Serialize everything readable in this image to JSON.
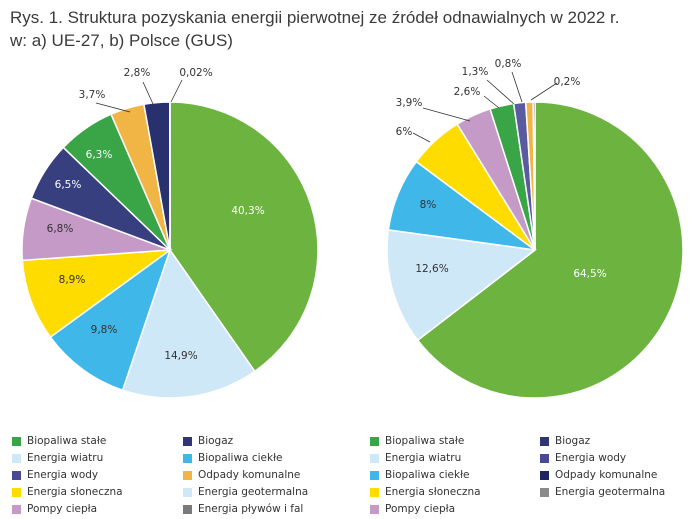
{
  "title": {
    "line1": "Rys. 1. Struktura pozyskania energii pierwotnej ze źródeł odnawialnych w 2022 r.",
    "line2": "w: a) UE-27, b) Polsce (GUS)"
  },
  "chart_data": [
    {
      "type": "pie",
      "id": "ue27",
      "start": "top",
      "direction": "clockwise",
      "slices": [
        {
          "label": "Biopaliwa stałe",
          "value": 40.3,
          "text": "40,3%",
          "color": "#6db33f",
          "text_color": "#ffffff"
        },
        {
          "label": "Energia wiatru",
          "value": 14.9,
          "text": "14,9%",
          "color": "#cfe8f7",
          "text_color": "#333333"
        },
        {
          "label": "Biopaliwa ciekłe",
          "value": 9.8,
          "text": "9,8%",
          "color": "#3fb7e9",
          "text_color": "#333333"
        },
        {
          "label": "Energia słoneczna",
          "value": 8.9,
          "text": "8,9%",
          "color": "#ffdc00",
          "text_color": "#333333"
        },
        {
          "label": "Pompy ciepła",
          "value": 6.8,
          "text": "6,8%",
          "color": "#c69ac6",
          "text_color": "#333333"
        },
        {
          "label": "Energia wody",
          "value": 6.5,
          "text": "6,5%",
          "color": "#373f7f",
          "text_color": "#ffffff"
        },
        {
          "label": "Biogaz",
          "value": 6.3,
          "text": "6,3%",
          "color": "#3aa547",
          "text_color": "#ffffff"
        },
        {
          "label": "Odpady komunalne",
          "value": 3.7,
          "text": "3,7%",
          "color": "#f0b545",
          "text_color": "#333333"
        },
        {
          "label": "Energia geotermalna",
          "value": 2.8,
          "text": "2,8%",
          "color": "#29306e",
          "text_color": "#333333"
        },
        {
          "label": "Energia pływów i fal",
          "value": 0.02,
          "text": "0,02%",
          "color": "#7a7a7a",
          "text_color": "#333333"
        }
      ]
    },
    {
      "type": "pie",
      "id": "polska",
      "start": "top",
      "direction": "clockwise",
      "slices": [
        {
          "label": "Biopaliwa stałe",
          "value": 64.5,
          "text": "64,5%",
          "color": "#6db33f",
          "text_color": "#ffffff"
        },
        {
          "label": "Energia wiatru",
          "value": 12.6,
          "text": "12,6%",
          "color": "#cfe8f7",
          "text_color": "#333333"
        },
        {
          "label": "Biopaliwa ciekłe",
          "value": 8,
          "text": "8%",
          "color": "#3fb7e9",
          "text_color": "#333333"
        },
        {
          "label": "Energia słoneczna",
          "value": 6,
          "text": "6%",
          "color": "#ffdc00",
          "text_color": "#333333"
        },
        {
          "label": "Pompy ciepła",
          "value": 3.9,
          "text": "3,9%",
          "color": "#c69ac6",
          "text_color": "#333333"
        },
        {
          "label": "Biogaz",
          "value": 2.6,
          "text": "2,6%",
          "color": "#3aa547",
          "text_color": "#333333"
        },
        {
          "label": "Energia wody",
          "value": 1.3,
          "text": "1,3%",
          "color": "#5a5aa0",
          "text_color": "#333333"
        },
        {
          "label": "Odpady komunalne",
          "value": 0.8,
          "text": "0,8%",
          "color": "#f0b545",
          "text_color": "#333333"
        },
        {
          "label": "Odpady komunalne",
          "value": 0.2,
          "text": "0,2%",
          "color": "#1d2460",
          "text_color": "#333333"
        }
      ]
    }
  ],
  "legend_left": [
    {
      "label": "Biopaliwa stałe",
      "color": "#3aa547"
    },
    {
      "label": "Biogaz",
      "color": "#2f3575"
    },
    {
      "label": "Energia wiatru",
      "color": "#cfe8f7"
    },
    {
      "label": "Biopaliwa ciekłe",
      "color": "#3fb7e9"
    },
    {
      "label": "Energia wody",
      "color": "#4a4a94"
    },
    {
      "label": "Odpady komunalne",
      "color": "#f0b545"
    },
    {
      "label": "Energia słoneczna",
      "color": "#ffdc00"
    },
    {
      "label": "Energia geotermalna",
      "color": "#cfe8f7"
    },
    {
      "label": "Pompy ciepła",
      "color": "#c69ac6"
    },
    {
      "label": "Energia pływów i fal",
      "color": "#7a7a7a"
    }
  ],
  "legend_right": [
    {
      "label": "Biopaliwa stałe",
      "color": "#3aa547"
    },
    {
      "label": "Biogaz",
      "color": "#2f3575"
    },
    {
      "label": "Energia wiatru",
      "color": "#cfe8f7"
    },
    {
      "label": "Energia wody",
      "color": "#4a4a94"
    },
    {
      "label": "Biopaliwa ciekłe",
      "color": "#3fb7e9"
    },
    {
      "label": "Odpady komunalne",
      "color": "#1d2460"
    },
    {
      "label": "Energia słoneczna",
      "color": "#ffdc00"
    },
    {
      "label": "Energia geotermalna",
      "color": "#8a8a8a"
    },
    {
      "label": "Pompy ciepła",
      "color": "#c69ac6"
    }
  ]
}
